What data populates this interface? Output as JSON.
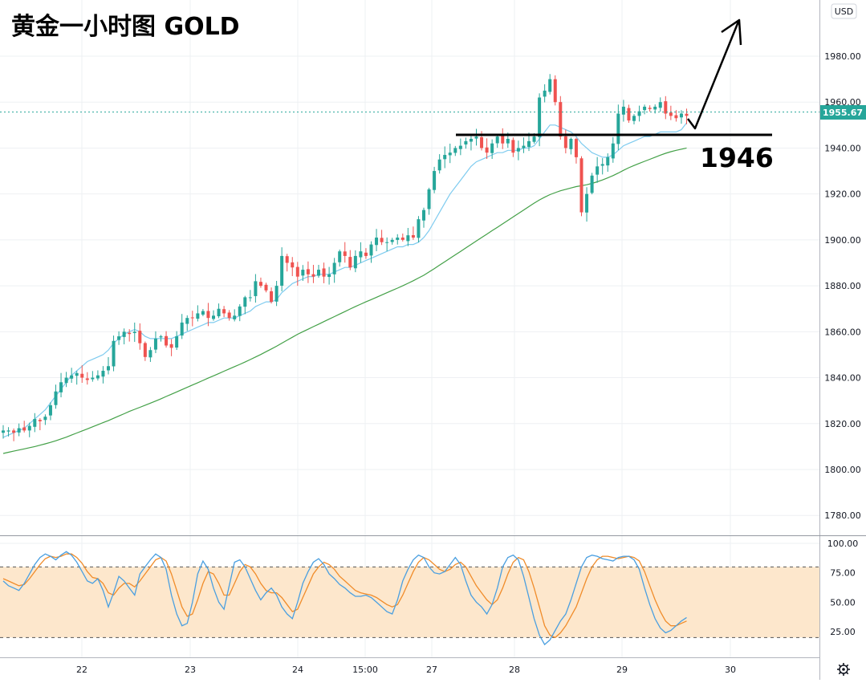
{
  "chart_title": "黄金一小时图 GOLD",
  "currency_badge": "USD",
  "settings_icon": "gear-icon",
  "colors": {
    "up_candle": "#26a69a",
    "down_candle": "#ef5350",
    "fast_ma": "#7ecbef",
    "slow_ma": "#43a047",
    "stoch_k": "#4a9fe0",
    "stoch_d": "#f08c2a",
    "stoch_band": "#fde7cc",
    "last_price": "#26a69a"
  },
  "chart_data": [
    {
      "type": "candlestick",
      "title": "黄金一小时图 GOLD",
      "x_tick_labels": [
        "22",
        "23",
        "24",
        "15:00",
        "27",
        "28",
        "29",
        "30"
      ],
      "ylim": [
        1770,
        2000
      ],
      "y_tick_values": [
        1780,
        1800,
        1820,
        1840,
        1860,
        1880,
        1900,
        1920,
        1940,
        1960,
        1980
      ],
      "y_tick_labels": [
        "1780.00",
        "1800.00",
        "1820.00",
        "1840.00",
        "1860.00",
        "1880.00",
        "1900.00",
        "1920.00",
        "1940.00",
        "1960.00",
        "1980.00"
      ],
      "last_price": 1955.67,
      "last_price_label": "1955.67",
      "support_level": 1946,
      "support_label": "1946",
      "grid": true,
      "price_series": [
        1817,
        1817,
        1816,
        1818,
        1817,
        1819,
        1822,
        1821,
        1823,
        1828,
        1834,
        1838,
        1840,
        1841,
        1842,
        1840,
        1839,
        1840,
        1841,
        1843,
        1845,
        1856,
        1858,
        1860,
        1859,
        1860,
        1855,
        1849,
        1852,
        1857,
        1858,
        1854,
        1853,
        1858,
        1864,
        1866,
        1866,
        1868,
        1869,
        1866,
        1867,
        1870,
        1868,
        1866,
        1867,
        1871,
        1875,
        1875,
        1882,
        1880,
        1878,
        1873,
        1880,
        1893,
        1890,
        1888,
        1884,
        1887,
        1885,
        1884,
        1887,
        1884,
        1885,
        1890,
        1895,
        1893,
        1888,
        1893,
        1895,
        1893,
        1898,
        1901,
        1899,
        1899,
        1900,
        1901,
        1900,
        1902,
        1901,
        1909,
        1913,
        1922,
        1930,
        1935,
        1937,
        1938,
        1940,
        1941,
        1943,
        1944,
        1945,
        1940,
        1938,
        1942,
        1945,
        1942,
        1944,
        1938,
        1940,
        1941,
        1943,
        1945,
        1962,
        1965,
        1970,
        1960,
        1945,
        1940,
        1944,
        1936,
        1912,
        1920,
        1928,
        1932,
        1933,
        1936,
        1942,
        1955,
        1958,
        1952,
        1954,
        1956,
        1958,
        1957,
        1958,
        1960,
        1955,
        1954,
        1953,
        1955,
        1954
      ],
      "series": [
        {
          "name": "",
          "values": [
            1814,
            1815,
            1816,
            1817,
            1818,
            1820,
            1822,
            1824,
            1826,
            1829,
            1832,
            1835,
            1838,
            1841,
            1843,
            1845,
            1847,
            1848,
            1849,
            1850,
            1852,
            1855,
            1857,
            1859,
            1860,
            1861,
            1860,
            1858,
            1857,
            1857,
            1857,
            1857,
            1857,
            1858,
            1859,
            1860,
            1861,
            1862,
            1863,
            1864,
            1864,
            1865,
            1866,
            1866,
            1866,
            1867,
            1868,
            1869,
            1871,
            1872,
            1873,
            1873,
            1874,
            1877,
            1879,
            1881,
            1882,
            1883,
            1884,
            1884,
            1885,
            1885,
            1885,
            1886,
            1887,
            1888,
            1888,
            1889,
            1890,
            1891,
            1892,
            1893,
            1894,
            1895,
            1896,
            1897,
            1897,
            1898,
            1898,
            1899,
            1901,
            1904,
            1908,
            1912,
            1916,
            1920,
            1923,
            1926,
            1929,
            1932,
            1934,
            1935,
            1936,
            1937,
            1938,
            1938,
            1939,
            1939,
            1939,
            1940,
            1940,
            1941,
            1944,
            1947,
            1950,
            1950,
            1949,
            1948,
            1947,
            1945,
            1942,
            1940,
            1938,
            1937,
            1936,
            1936,
            1937,
            1939,
            1941,
            1942,
            1943,
            1944,
            1945,
            1945,
            1946,
            1947,
            1947,
            1947,
            1947,
            1948,
            1951
          ]
        },
        {
          "name": "",
          "values": [
            1807,
            1807.5,
            1808,
            1808.5,
            1809,
            1809.5,
            1810,
            1810.6,
            1811.2,
            1811.8,
            1812.5,
            1813.3,
            1814.1,
            1815,
            1815.9,
            1816.8,
            1817.7,
            1818.6,
            1819.5,
            1820.4,
            1821.3,
            1822.3,
            1823.3,
            1824.3,
            1825.3,
            1826.2,
            1827.1,
            1828,
            1828.9,
            1829.8,
            1830.8,
            1831.8,
            1832.8,
            1833.8,
            1834.8,
            1835.8,
            1836.8,
            1837.8,
            1838.8,
            1839.8,
            1840.8,
            1841.8,
            1842.8,
            1843.8,
            1844.8,
            1845.8,
            1846.8,
            1847.9,
            1849,
            1850.1,
            1851.3,
            1852.5,
            1853.7,
            1855,
            1856.3,
            1857.6,
            1858.9,
            1860,
            1861.1,
            1862.2,
            1863.3,
            1864.4,
            1865.5,
            1866.6,
            1867.7,
            1868.8,
            1869.9,
            1871,
            1872,
            1873,
            1874,
            1875,
            1876,
            1877,
            1878,
            1879,
            1880,
            1881.1,
            1882.2,
            1883.4,
            1884.6,
            1886,
            1887.5,
            1889,
            1890.5,
            1892,
            1893.5,
            1895,
            1896.5,
            1898,
            1899.5,
            1901,
            1902.5,
            1904,
            1905.5,
            1907,
            1908.5,
            1910,
            1911.5,
            1913,
            1914.5,
            1916,
            1917.4,
            1918.6,
            1919.7,
            1920.6,
            1921.4,
            1922,
            1922.6,
            1923.2,
            1923.6,
            1924,
            1924.6,
            1925.3,
            1926.1,
            1927,
            1928,
            1929.1,
            1930.3,
            1931.4,
            1932.4,
            1933.3,
            1934.2,
            1935.1,
            1936,
            1936.9,
            1937.7,
            1938.4,
            1939,
            1939.5,
            1940
          ]
        }
      ]
    },
    {
      "type": "line",
      "ylim": [
        5,
        108
      ],
      "y_tick_values": [
        25,
        50,
        75,
        100
      ],
      "y_tick_labels": [
        "25.00",
        "50.00",
        "75.00",
        "100.00"
      ],
      "band": [
        20,
        80
      ],
      "series": [
        {
          "name": "",
          "values": [
            68,
            64,
            62,
            60,
            66,
            74,
            82,
            88,
            91,
            89,
            86,
            90,
            93,
            90,
            84,
            76,
            68,
            66,
            70,
            60,
            46,
            58,
            72,
            68,
            62,
            56,
            74,
            80,
            86,
            91,
            88,
            78,
            56,
            40,
            30,
            32,
            50,
            74,
            85,
            78,
            62,
            50,
            44,
            64,
            84,
            86,
            80,
            70,
            60,
            52,
            58,
            62,
            56,
            46,
            40,
            36,
            50,
            66,
            76,
            84,
            87,
            82,
            74,
            70,
            65,
            62,
            58,
            55,
            55,
            56,
            54,
            50,
            46,
            42,
            40,
            52,
            68,
            78,
            86,
            90,
            88,
            80,
            75,
            74,
            76,
            82,
            88,
            82,
            68,
            56,
            50,
            46,
            40,
            48,
            62,
            80,
            88,
            90,
            86,
            72,
            54,
            36,
            22,
            14,
            18,
            26,
            34,
            40,
            52,
            66,
            80,
            88,
            90,
            89,
            87,
            86,
            85,
            88,
            89,
            89,
            86,
            78,
            62,
            48,
            36,
            28,
            24,
            26,
            30,
            34,
            37
          ]
        },
        {
          "name": "",
          "values": [
            70,
            68,
            66,
            64,
            65,
            70,
            76,
            82,
            87,
            89,
            88,
            89,
            91,
            91,
            88,
            83,
            76,
            71,
            70,
            66,
            58,
            56,
            62,
            66,
            66,
            63,
            68,
            74,
            80,
            86,
            88,
            85,
            74,
            60,
            46,
            38,
            40,
            52,
            66,
            76,
            74,
            66,
            56,
            56,
            66,
            76,
            82,
            80,
            74,
            66,
            60,
            58,
            58,
            54,
            48,
            42,
            44,
            54,
            64,
            74,
            80,
            84,
            82,
            78,
            72,
            68,
            64,
            60,
            58,
            57,
            56,
            54,
            51,
            48,
            46,
            48,
            56,
            66,
            76,
            84,
            88,
            86,
            82,
            78,
            76,
            78,
            82,
            84,
            80,
            72,
            64,
            58,
            52,
            48,
            52,
            62,
            74,
            84,
            88,
            86,
            76,
            62,
            46,
            30,
            22,
            20,
            24,
            30,
            38,
            46,
            58,
            70,
            80,
            86,
            89,
            89,
            88,
            87,
            88,
            89,
            88,
            85,
            76,
            64,
            52,
            42,
            34,
            30,
            30,
            32,
            34
          ]
        }
      ]
    }
  ]
}
